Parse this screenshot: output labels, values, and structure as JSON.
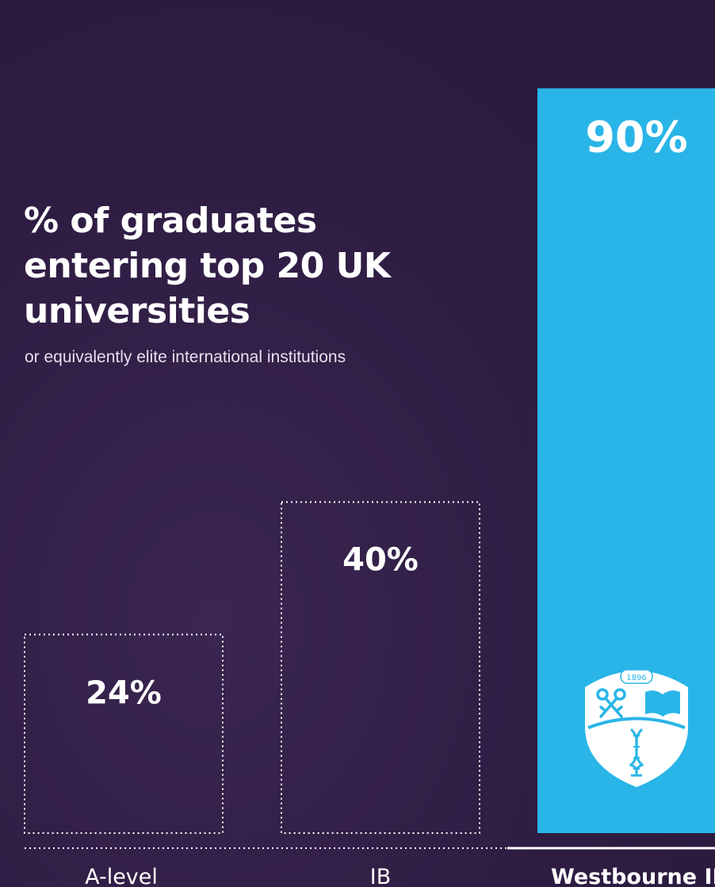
{
  "chart_data": {
    "type": "bar",
    "title": "% of graduates entering top 20 UK universities",
    "subtitle": "or equivalently elite international institutions",
    "categories": [
      "A-level",
      "IB",
      "Westbourne IB"
    ],
    "values": [
      24,
      40,
      90
    ],
    "value_labels": [
      "24%",
      "40%",
      "90%"
    ],
    "unit": "%",
    "ylim": [
      0,
      100
    ],
    "grid": false,
    "legend": "none",
    "highlight_index": 2,
    "colors": {
      "background": "#2e1c42",
      "highlight_bar": "#29b5e8",
      "outline_bar": "#ffffff",
      "text": "#ffffff"
    },
    "crest": {
      "year": "1896",
      "icons": [
        "crossed-keys-icon",
        "open-book-icon",
        "dna-helix-icon"
      ]
    }
  }
}
